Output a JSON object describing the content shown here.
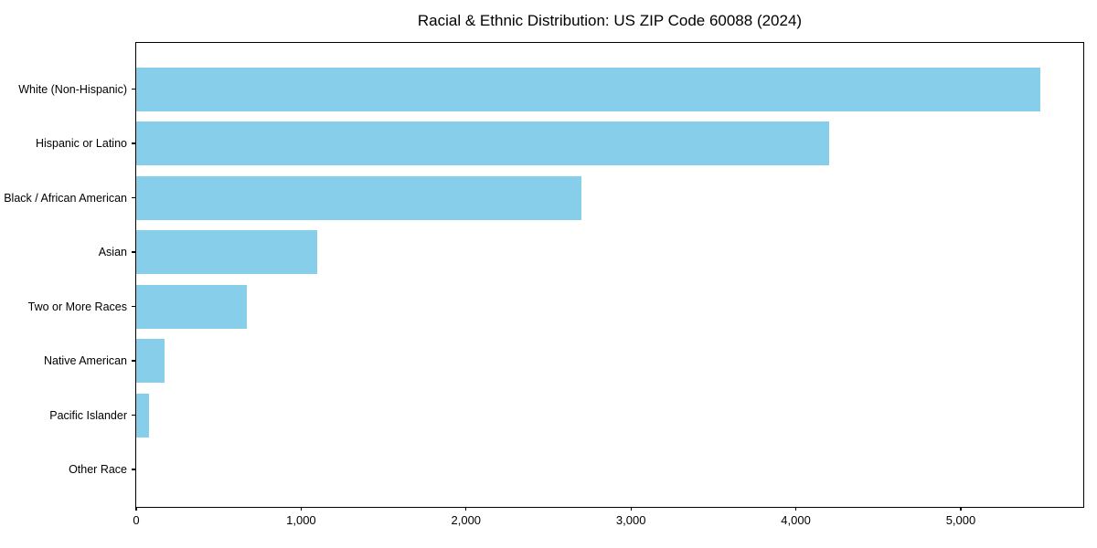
{
  "chart_data": {
    "type": "bar",
    "orientation": "horizontal",
    "title": "Racial & Ethnic Distribution: US ZIP Code 60088 (2024)",
    "categories": [
      "White (Non-Hispanic)",
      "Hispanic or Latino",
      "Black / African American",
      "Asian",
      "Two or More Races",
      "Native American",
      "Pacific Islander",
      "Other Race"
    ],
    "values": [
      5480,
      4200,
      2700,
      1100,
      670,
      170,
      75,
      0
    ],
    "xlabel": "",
    "ylabel": "",
    "xlim": [
      0,
      5754
    ],
    "x_ticks": [
      0,
      1000,
      2000,
      3000,
      4000,
      5000
    ],
    "x_tick_labels": [
      "0",
      "1,000",
      "2,000",
      "3,000",
      "4,000",
      "5,000"
    ],
    "bar_color": "#87CEEB",
    "axis_color": "#000000",
    "background_color": "#ffffff",
    "grid": false,
    "legend": null,
    "bar_height_fraction": 0.8
  }
}
